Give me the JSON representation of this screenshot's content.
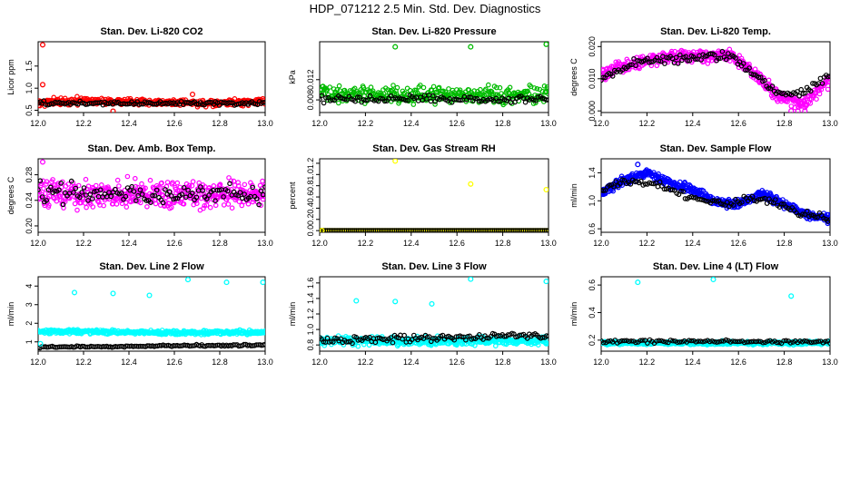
{
  "figure_title": "HDP_071212  2.5 Min. Std. Dev. Diagnostics",
  "colors": {
    "black": "#000000",
    "red": "#ff0000",
    "green": "#00bb00",
    "magenta": "#ff00ff",
    "yellow": "#ffff00",
    "blue": "#0000ff",
    "cyan": "#00ffff"
  },
  "chart_data": [
    {
      "type": "scatter",
      "title": "Stan. Dev. Li-820 CO2",
      "ylabel": "Licor ppm",
      "xlim": [
        12.0,
        13.0
      ],
      "ylim": [
        0.45,
        2.05
      ],
      "xticks": [
        "12.0",
        "12.2",
        "12.4",
        "12.6",
        "12.8",
        "13.0"
      ],
      "yticks": [
        "0.5",
        "1.0",
        "1.5"
      ],
      "ytick_values": [
        0.5,
        1.0,
        1.5
      ],
      "series": [
        {
          "name": "main",
          "color": "red",
          "level": [
            0.68,
            0.72,
            0.68,
            0.65,
            0.7
          ],
          "spread": 0.07,
          "n": 380
        },
        {
          "name": "secondary",
          "color": "black",
          "level": [
            0.66,
            0.66,
            0.66
          ],
          "spread": 0.04,
          "n": 120
        }
      ],
      "outliers": [
        {
          "x": 12.02,
          "y": 1.98,
          "color": "red"
        },
        {
          "x": 12.02,
          "y": 1.08,
          "color": "red"
        },
        {
          "x": 12.68,
          "y": 0.86,
          "color": "red"
        },
        {
          "x": 12.33,
          "y": 0.48,
          "color": "red"
        }
      ]
    },
    {
      "type": "scatter",
      "title": "Stan. Dev. Li-820 Pressure",
      "ylabel": "kPa",
      "xlim": [
        12.0,
        13.0
      ],
      "ylim": [
        0.0055,
        0.0195
      ],
      "xticks": [
        "12.0",
        "12.2",
        "12.4",
        "12.6",
        "12.8",
        "13.0"
      ],
      "yticks": [
        "0.008",
        "0.012"
      ],
      "ytick_values": [
        0.008,
        0.012
      ],
      "series": [
        {
          "name": "main",
          "color": "green",
          "level": [
            0.0095,
            0.0092,
            0.009,
            0.009,
            0.0092
          ],
          "spread": 0.0016,
          "n": 340
        },
        {
          "name": "secondary",
          "color": "black",
          "level": [
            0.0082,
            0.0082,
            0.0082
          ],
          "spread": 0.0007,
          "n": 110
        }
      ],
      "outliers": [
        {
          "x": 12.33,
          "y": 0.0185,
          "color": "green"
        },
        {
          "x": 12.66,
          "y": 0.0185,
          "color": "green"
        },
        {
          "x": 12.99,
          "y": 0.019,
          "color": "green"
        }
      ]
    },
    {
      "type": "scatter",
      "title": "Stan. Dev. Li-820 Temp.",
      "ylabel": "degrees C",
      "xlim": [
        12.0,
        13.0
      ],
      "ylim": [
        -0.0005,
        0.0215
      ],
      "xticks": [
        "12.0",
        "12.2",
        "12.4",
        "12.6",
        "12.8",
        "13.0"
      ],
      "yticks": [
        "0.000",
        "0.010",
        "0.020"
      ],
      "ytick_values": [
        0.0,
        0.01,
        0.02
      ],
      "series": [
        {
          "name": "main",
          "color": "magenta",
          "level": [
            0.011,
            0.014,
            0.016,
            0.017,
            0.017,
            0.018,
            0.012,
            0.004,
            0.002,
            0.01
          ],
          "spread": 0.0018,
          "n": 420
        },
        {
          "name": "secondary",
          "color": "black",
          "level": [
            0.01,
            0.014,
            0.016,
            0.016,
            0.017,
            0.017,
            0.012,
            0.005,
            0.006,
            0.011
          ],
          "spread": 0.0012,
          "n": 120
        }
      ],
      "outliers": [
        {
          "x": 12.83,
          "y": 0.0,
          "color": "magenta"
        },
        {
          "x": 12.86,
          "y": 0.0,
          "color": "magenta"
        },
        {
          "x": 12.89,
          "y": 0.0,
          "color": "magenta"
        }
      ]
    },
    {
      "type": "scatter",
      "title": "Stan. Dev. Amb. Box Temp.",
      "ylabel": "degrees C",
      "xlim": [
        12.0,
        13.0
      ],
      "ylim": [
        0.19,
        0.305
      ],
      "xticks": [
        "12.0",
        "12.2",
        "12.4",
        "12.6",
        "12.8",
        "13.0"
      ],
      "yticks": [
        "0.20",
        "0.24",
        "0.28"
      ],
      "ytick_values": [
        0.2,
        0.24,
        0.28
      ],
      "series": [
        {
          "name": "main",
          "color": "magenta",
          "level": [
            0.25,
            0.25,
            0.25,
            0.25,
            0.25
          ],
          "spread": 0.02,
          "n": 420
        },
        {
          "name": "secondary",
          "color": "black",
          "level": [
            0.25,
            0.25,
            0.25
          ],
          "spread": 0.015,
          "n": 110
        }
      ],
      "outliers": [
        {
          "x": 12.02,
          "y": 0.3,
          "color": "magenta"
        }
      ]
    },
    {
      "type": "scatter",
      "title": "Stan. Dev. Gas Stream RH",
      "ylabel": "percent",
      "xlim": [
        12.0,
        13.0
      ],
      "ylim": [
        -0.03,
        1.28
      ],
      "xticks": [
        "12.0",
        "12.2",
        "12.4",
        "12.6",
        "12.8",
        "13.0"
      ],
      "yticks": [
        "0.0",
        "0.2",
        "0.4",
        "0.6",
        "0.8",
        "1.0",
        "1.2"
      ],
      "ytick_values": [
        0.0,
        0.2,
        0.4,
        0.6,
        0.8,
        1.0,
        1.2
      ],
      "series": [
        {
          "name": "main",
          "color": "yellow",
          "level": [
            0.0,
            0.0
          ],
          "spread": 0.0,
          "n": 200
        },
        {
          "name": "secondary",
          "color": "black",
          "level": [
            0.0,
            0.0
          ],
          "spread": 0.0,
          "n": 120
        }
      ],
      "outliers": [
        {
          "x": 12.33,
          "y": 1.24,
          "color": "yellow"
        },
        {
          "x": 12.66,
          "y": 0.83,
          "color": "yellow"
        },
        {
          "x": 12.99,
          "y": 0.73,
          "color": "yellow"
        },
        {
          "x": 12.01,
          "y": 0.0,
          "color": "yellow"
        }
      ]
    },
    {
      "type": "scatter",
      "title": "Stan. Dev. Sample Flow",
      "ylabel": "ml/min",
      "xlim": [
        12.0,
        13.0
      ],
      "ylim": [
        0.55,
        1.6
      ],
      "xticks": [
        "12.0",
        "12.2",
        "12.4",
        "12.6",
        "12.8",
        "13.0"
      ],
      "yticks": [
        "0.6",
        "1.0",
        "1.4"
      ],
      "ytick_values": [
        0.6,
        1.0,
        1.4
      ],
      "series": [
        {
          "name": "main",
          "color": "blue",
          "level": [
            1.1,
            1.3,
            1.4,
            1.25,
            1.15,
            1.0,
            0.95,
            1.1,
            0.95,
            0.8,
            0.75
          ],
          "spread": 0.06,
          "n": 480
        },
        {
          "name": "secondary",
          "color": "black",
          "level": [
            1.15,
            1.3,
            1.25,
            1.1,
            1.0,
            0.95,
            1.05,
            0.95,
            0.8,
            0.75
          ],
          "spread": 0.05,
          "n": 110
        }
      ],
      "outliers": [
        {
          "x": 12.16,
          "y": 1.52,
          "color": "blue"
        }
      ]
    },
    {
      "type": "scatter",
      "title": "Stan. Dev. Line 2 Flow",
      "ylabel": "ml/min",
      "xlim": [
        12.0,
        13.0
      ],
      "ylim": [
        0.5,
        4.5
      ],
      "xticks": [
        "12.0",
        "12.2",
        "12.4",
        "12.6",
        "12.8",
        "13.0"
      ],
      "yticks": [
        "1",
        "2",
        "3",
        "4"
      ],
      "ytick_values": [
        1,
        2,
        3,
        4
      ],
      "series": [
        {
          "name": "main",
          "color": "cyan",
          "level": [
            1.55,
            1.55,
            1.5,
            1.5,
            1.5
          ],
          "spread": 0.1,
          "n": 420
        },
        {
          "name": "secondary",
          "color": "black",
          "level": [
            0.72,
            0.75,
            0.8,
            0.82
          ],
          "spread": 0.04,
          "n": 130
        }
      ],
      "outliers": [
        {
          "x": 12.16,
          "y": 3.65,
          "color": "cyan"
        },
        {
          "x": 12.33,
          "y": 3.6,
          "color": "cyan"
        },
        {
          "x": 12.49,
          "y": 3.5,
          "color": "cyan"
        },
        {
          "x": 12.66,
          "y": 4.35,
          "color": "cyan"
        },
        {
          "x": 12.83,
          "y": 4.2,
          "color": "cyan"
        },
        {
          "x": 12.99,
          "y": 4.2,
          "color": "cyan"
        },
        {
          "x": 12.01,
          "y": 0.9,
          "color": "cyan"
        }
      ]
    },
    {
      "type": "scatter",
      "title": "Stan. Dev. Line 3 Flow",
      "ylabel": "ml/min",
      "xlim": [
        12.0,
        13.0
      ],
      "ylim": [
        0.72,
        1.68
      ],
      "xticks": [
        "12.0",
        "12.2",
        "12.4",
        "12.6",
        "12.8",
        "13.0"
      ],
      "yticks": [
        "0.8",
        "1.0",
        "1.2",
        "1.4",
        "1.6"
      ],
      "ytick_values": [
        0.8,
        1.0,
        1.2,
        1.4,
        1.6
      ],
      "series": [
        {
          "name": "main",
          "color": "cyan",
          "level": [
            0.85,
            0.85,
            0.85,
            0.85,
            0.85
          ],
          "spread": 0.05,
          "n": 430
        },
        {
          "name": "secondary",
          "color": "black",
          "level": [
            0.87,
            0.88,
            0.9,
            0.92
          ],
          "spread": 0.04,
          "n": 120
        }
      ],
      "outliers": [
        {
          "x": 12.16,
          "y": 1.37,
          "color": "cyan"
        },
        {
          "x": 12.33,
          "y": 1.36,
          "color": "cyan"
        },
        {
          "x": 12.49,
          "y": 1.33,
          "color": "cyan"
        },
        {
          "x": 12.66,
          "y": 1.65,
          "color": "cyan"
        },
        {
          "x": 12.99,
          "y": 1.62,
          "color": "cyan"
        }
      ]
    },
    {
      "type": "scatter",
      "title": "Stan. Dev. Line 4 (LT) Flow",
      "ylabel": "ml/min",
      "xlim": [
        12.0,
        13.0
      ],
      "ylim": [
        0.12,
        0.66
      ],
      "xticks": [
        "12.0",
        "12.2",
        "12.4",
        "12.6",
        "12.8",
        "13.0"
      ],
      "yticks": [
        "0.2",
        "0.4",
        "0.6"
      ],
      "ytick_values": [
        0.2,
        0.4,
        0.6
      ],
      "series": [
        {
          "name": "main",
          "color": "cyan",
          "level": [
            0.18,
            0.18,
            0.18,
            0.18
          ],
          "spread": 0.012,
          "n": 420
        },
        {
          "name": "secondary",
          "color": "black",
          "level": [
            0.19,
            0.19,
            0.19
          ],
          "spread": 0.01,
          "n": 100
        }
      ],
      "outliers": [
        {
          "x": 12.16,
          "y": 0.62,
          "color": "cyan"
        },
        {
          "x": 12.49,
          "y": 0.64,
          "color": "cyan"
        },
        {
          "x": 12.83,
          "y": 0.52,
          "color": "cyan"
        }
      ]
    }
  ]
}
